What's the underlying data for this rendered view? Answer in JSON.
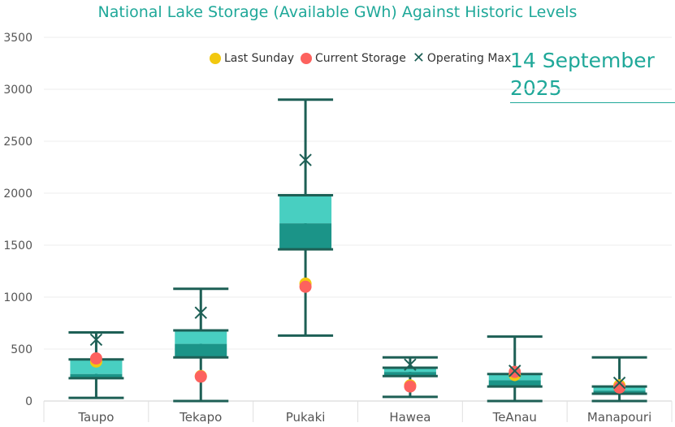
{
  "chart_data": {
    "type": "box",
    "title": "National Lake Storage (Available GWh) Against Historic Levels",
    "date_label_line1": "14 September",
    "date_label_line2": "2025",
    "categories": [
      "Taupo",
      "Tekapo",
      "Pukaki",
      "Hawea",
      "TeAnau",
      "Manapouri"
    ],
    "ylim": [
      0,
      3500
    ],
    "yticks": [
      0,
      500,
      1000,
      1500,
      2000,
      2500,
      3000,
      3500
    ],
    "grid": true,
    "legend_position": "top",
    "legend": [
      {
        "key": "last_sunday",
        "label": "Last Sunday",
        "marker": "circle",
        "color": "#f2c80f"
      },
      {
        "key": "current",
        "label": "Current Storage",
        "marker": "circle",
        "color": "#fd625e"
      },
      {
        "key": "operating_max",
        "label": "Operating Max",
        "marker": "x",
        "color": "#1d5f55"
      }
    ],
    "boxes": [
      {
        "category": "Taupo",
        "min": 30,
        "q1": 220,
        "median": 260,
        "q3": 400,
        "max": 660
      },
      {
        "category": "Tekapo",
        "min": 0,
        "q1": 420,
        "median": 550,
        "q3": 680,
        "max": 1080
      },
      {
        "category": "Pukaki",
        "min": 630,
        "q1": 1460,
        "median": 1710,
        "q3": 1980,
        "max": 2900
      },
      {
        "category": "Hawea",
        "min": 40,
        "q1": 240,
        "median": 280,
        "q3": 320,
        "max": 420
      },
      {
        "category": "TeAnau",
        "min": 0,
        "q1": 140,
        "median": 200,
        "q3": 260,
        "max": 620
      },
      {
        "category": "Manapouri",
        "min": 0,
        "q1": 70,
        "median": 100,
        "q3": 140,
        "max": 420
      }
    ],
    "series": [
      {
        "name": "Last Sunday",
        "values": [
          380,
          240,
          1130,
          150,
          250,
          150
        ]
      },
      {
        "name": "Current Storage",
        "values": [
          410,
          235,
          1100,
          140,
          280,
          130
        ]
      },
      {
        "name": "Operating Max",
        "values": [
          590,
          850,
          2320,
          350,
          290,
          175
        ]
      }
    ],
    "colors": {
      "box_upper": "#48cfc1",
      "box_lower": "#1b9488",
      "whisker": "#1d5f55",
      "grid": "#ececec",
      "axis_text": "#555555",
      "title": "#1fa899"
    }
  }
}
